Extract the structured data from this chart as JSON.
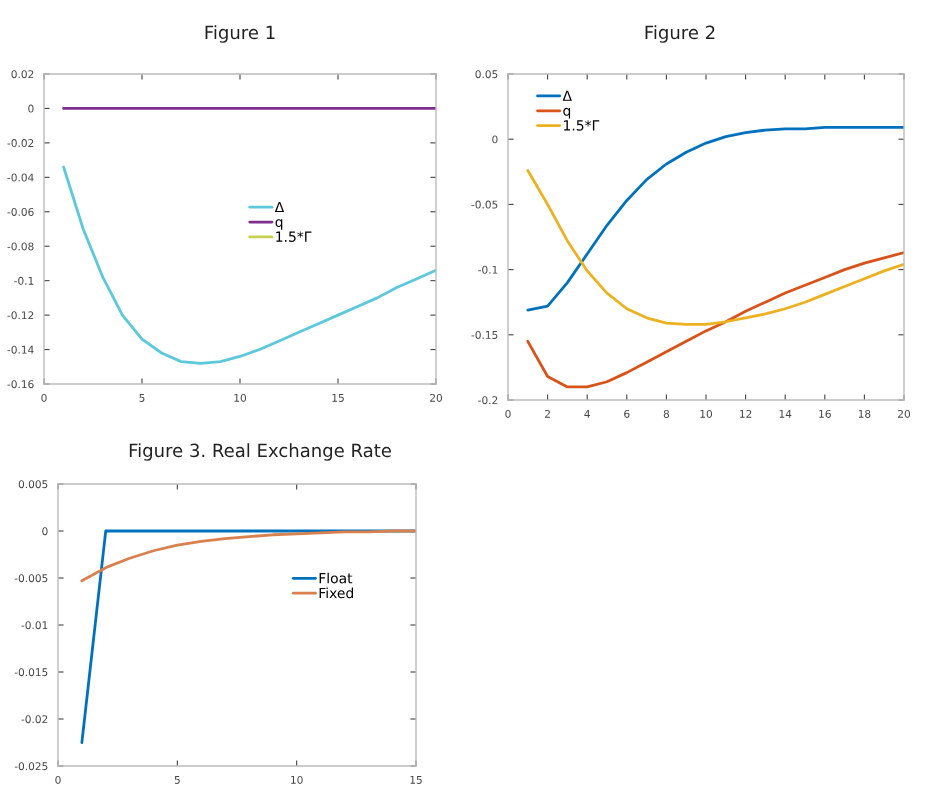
{
  "chart_data": [
    {
      "type": "line",
      "title": "Figure 1",
      "x": [
        1,
        2,
        3,
        4,
        5,
        6,
        7,
        8,
        9,
        10,
        11,
        12,
        13,
        14,
        15,
        16,
        17,
        18,
        19,
        20
      ],
      "xlim": [
        0,
        20
      ],
      "xticks": [
        0,
        5,
        10,
        15,
        20
      ],
      "ylim": [
        -0.16,
        0.02
      ],
      "yticks": [
        -0.16,
        -0.14,
        -0.12,
        -0.1,
        -0.08,
        -0.06,
        -0.04,
        -0.02,
        0,
        0.02
      ],
      "legend": "top",
      "grid": false,
      "series": [
        {
          "name": "Δ",
          "color": "#5bc8dc",
          "values": [
            -0.034,
            -0.07,
            -0.098,
            -0.12,
            -0.134,
            -0.142,
            -0.147,
            -0.148,
            -0.147,
            -0.144,
            -0.14,
            -0.135,
            -0.13,
            -0.125,
            -0.12,
            -0.115,
            -0.11,
            -0.104,
            -0.099,
            -0.094
          ]
        },
        {
          "name": "q",
          "color": "#7e2f8e",
          "values": [
            0,
            0,
            0,
            0,
            0,
            0,
            0,
            0,
            0,
            0,
            0,
            0,
            0,
            0,
            0,
            0,
            0,
            0,
            0,
            0
          ]
        },
        {
          "name": "1.5*Γ",
          "color": "#c8d050",
          "values": [
            null,
            null,
            null,
            null,
            null,
            null,
            null,
            null,
            null,
            null,
            null,
            null,
            null,
            null,
            null,
            null,
            null,
            null,
            null,
            null
          ]
        }
      ]
    },
    {
      "type": "line",
      "title": "Figure 2",
      "x": [
        1,
        2,
        3,
        4,
        5,
        6,
        7,
        8,
        9,
        10,
        11,
        12,
        13,
        14,
        15,
        16,
        17,
        18,
        19,
        20
      ],
      "xlim": [
        0,
        20
      ],
      "xticks": [
        0,
        2,
        4,
        6,
        8,
        10,
        12,
        14,
        16,
        18,
        20
      ],
      "ylim": [
        -0.2,
        0.05
      ],
      "yticks": [
        -0.2,
        -0.15,
        -0.1,
        -0.05,
        0,
        0.05
      ],
      "legend": "top left",
      "grid": false,
      "series": [
        {
          "name": "Δ",
          "color": "#0072bd",
          "values": [
            -0.131,
            -0.128,
            -0.11,
            -0.088,
            -0.066,
            -0.047,
            -0.031,
            -0.019,
            -0.01,
            -0.003,
            0.002,
            0.005,
            0.007,
            0.008,
            0.008,
            0.009,
            0.009,
            0.009,
            0.009,
            0.009
          ]
        },
        {
          "name": "q",
          "color": "#d95319",
          "values": [
            -0.155,
            -0.182,
            -0.19,
            -0.19,
            -0.186,
            -0.179,
            -0.171,
            -0.163,
            -0.155,
            -0.147,
            -0.14,
            -0.132,
            -0.125,
            -0.118,
            -0.112,
            -0.106,
            -0.1,
            -0.095,
            -0.091,
            -0.087
          ]
        },
        {
          "name": "1.5*Γ",
          "color": "#edb120",
          "values": [
            -0.024,
            -0.05,
            -0.078,
            -0.101,
            -0.118,
            -0.13,
            -0.137,
            -0.141,
            -0.142,
            -0.142,
            -0.14,
            -0.137,
            -0.134,
            -0.13,
            -0.125,
            -0.119,
            -0.113,
            -0.107,
            -0.101,
            -0.096
          ]
        }
      ]
    },
    {
      "type": "line",
      "title": "Figure 3. Real Exchange Rate",
      "x": [
        1,
        2,
        3,
        4,
        5,
        6,
        7,
        8,
        9,
        10,
        11,
        12,
        13,
        14,
        15
      ],
      "xlim": [
        0,
        15
      ],
      "xticks": [
        0,
        5,
        10,
        15
      ],
      "ylim": [
        -0.025,
        0.005
      ],
      "yticks": [
        -0.025,
        -0.02,
        -0.015,
        -0.01,
        -0.005,
        0,
        0.005
      ],
      "legend": "right",
      "grid": false,
      "series": [
        {
          "name": "Float",
          "color": "#0072bd",
          "values": [
            -0.0225,
            0,
            0,
            0,
            0,
            0,
            0,
            0,
            0,
            0,
            0,
            0,
            0,
            0,
            0
          ]
        },
        {
          "name": "Fixed",
          "color": "#d9804f",
          "values": [
            -0.0053,
            -0.0039,
            -0.0029,
            -0.0021,
            -0.0015,
            -0.0011,
            -0.0008,
            -0.0006,
            -0.0004,
            -0.0003,
            -0.0002,
            -0.0001,
            -0.0001,
            0,
            0
          ]
        }
      ]
    }
  ]
}
